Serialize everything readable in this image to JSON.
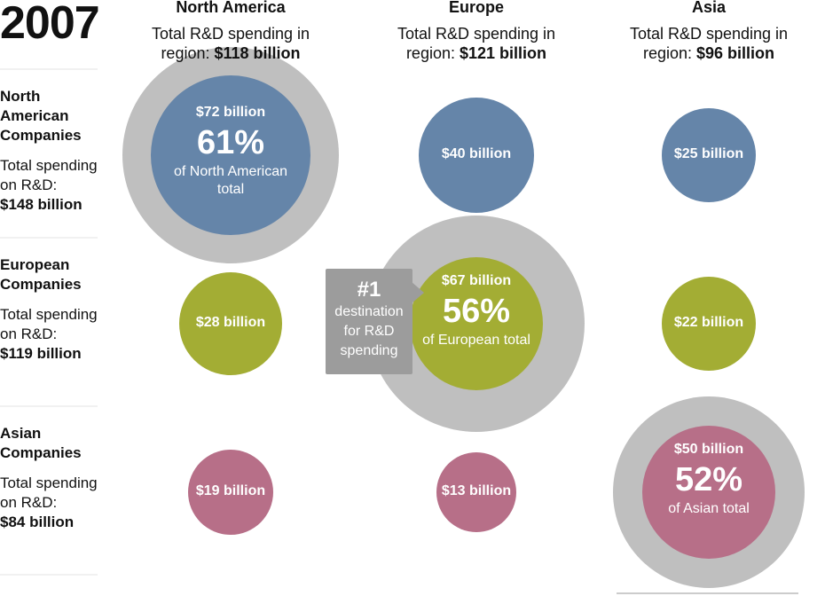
{
  "year": "2007",
  "columns": [
    {
      "name": "North America",
      "label": "Total R&D spending in region:",
      "total": "$118 billion"
    },
    {
      "name": "Europe",
      "label": "Total R&D spending in region:",
      "total": "$121 billion"
    },
    {
      "name": "Asia",
      "label": "Total R&D spending in region:",
      "total": "$96 billion"
    }
  ],
  "rows": [
    {
      "name": "North American Companies",
      "label": "Total spending on R&D:",
      "total": "$148 billion",
      "cells": [
        {
          "amount": "$72 billion",
          "percent": "61%",
          "note": "of North American total"
        },
        {
          "amount": "$40 billion"
        },
        {
          "amount": "$25 billion"
        }
      ]
    },
    {
      "name": "European Companies",
      "label": "Total spending on R&D:",
      "total": "$119 billion",
      "cells": [
        {
          "amount": "$28 billion"
        },
        {
          "amount": "$67 billion",
          "percent": "56%",
          "note": "of European total"
        },
        {
          "amount": "$22 billion"
        }
      ]
    },
    {
      "name": "Asian Companies",
      "label": "Total spending on R&D:",
      "total": "$84 billion",
      "cells": [
        {
          "amount": "$19 billion"
        },
        {
          "amount": "$13 billion"
        },
        {
          "amount": "$50 billion",
          "percent": "52%",
          "note": "of Asian total"
        }
      ]
    }
  ],
  "callout": {
    "rank": "#1",
    "text": "destination for R&D spending"
  }
}
